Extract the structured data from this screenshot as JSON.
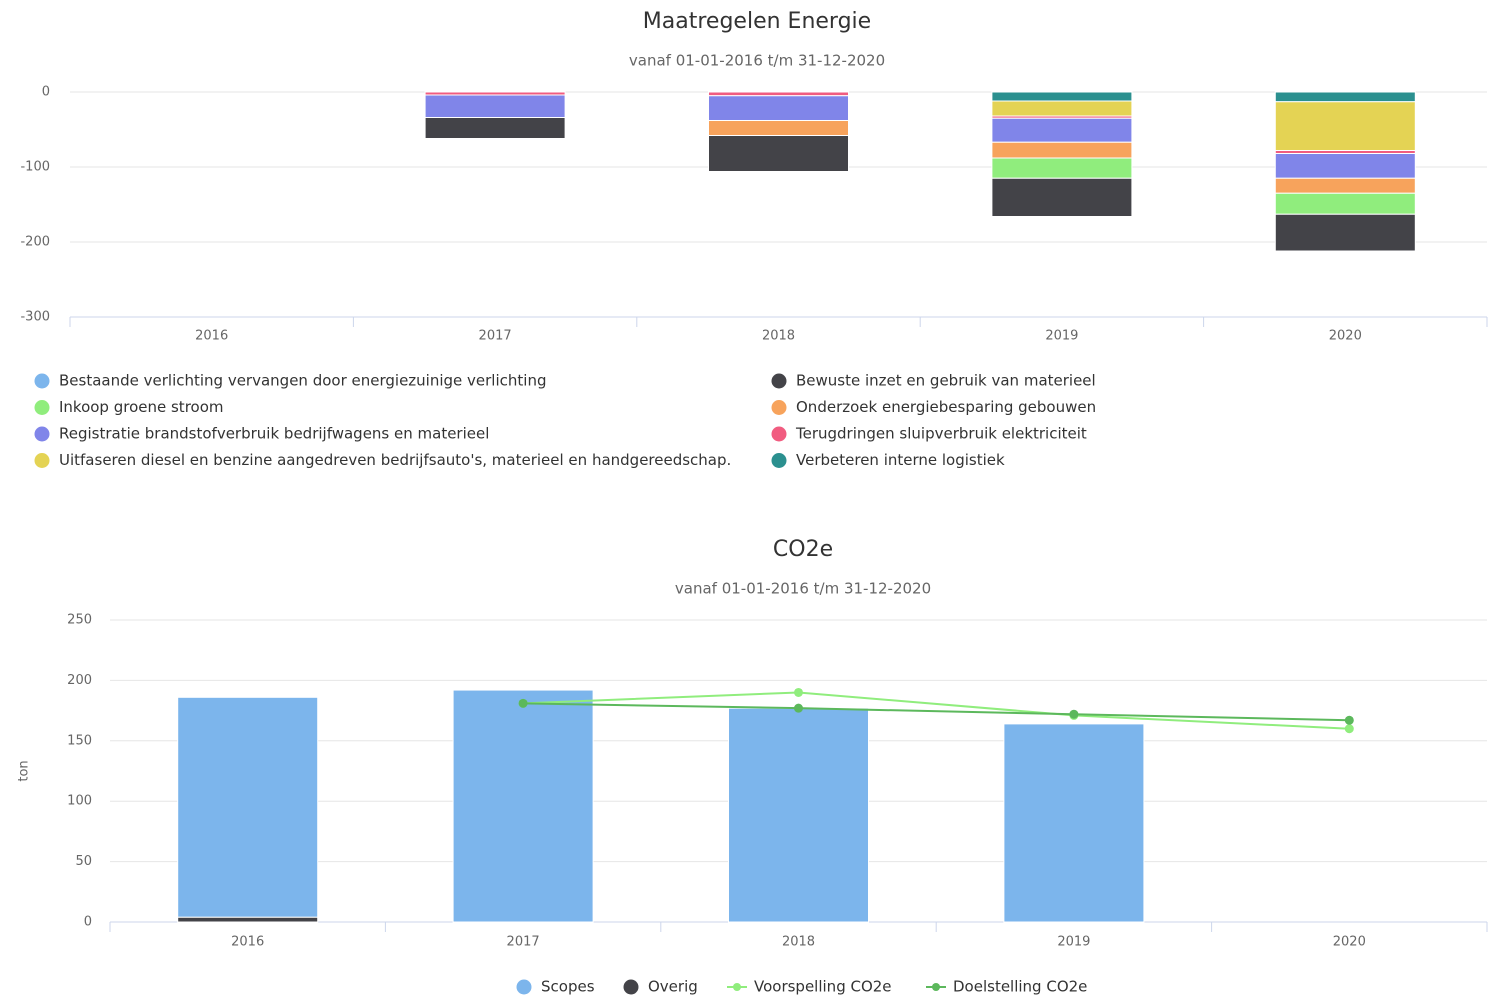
{
  "chart_data": [
    {
      "type": "bar",
      "stacked": true,
      "title": "Maatregelen Energie",
      "subtitle": "vanaf 01-01-2016 t/m 31-12-2020",
      "categories": [
        "2016",
        "2017",
        "2018",
        "2019",
        "2020"
      ],
      "ylim": [
        -300,
        0
      ],
      "yticks": [
        0,
        -100,
        -200,
        -300
      ],
      "grid": true,
      "series": [
        {
          "name": "Bestaande verlichting vervangen door energiezuinige verlichting",
          "color": "#7cb5ec",
          "values": [
            0,
            0,
            0,
            0,
            0
          ]
        },
        {
          "name": "Inkoop groene stroom",
          "color": "#90ed7d",
          "values": [
            0,
            0,
            0,
            -27,
            -28
          ]
        },
        {
          "name": "Registratie brandstofverbruik bedrijfwagens en materieel",
          "color": "#8085e9",
          "values": [
            0,
            -30,
            -33,
            -32,
            -33
          ]
        },
        {
          "name": "Uitfaseren diesel en benzine aangedreven bedrijfsauto's, materieel en handgereedschap.",
          "color": "#e4d354",
          "values": [
            0,
            0,
            0,
            -20,
            -65
          ]
        },
        {
          "name": "Bewuste inzet en gebruik van materieel",
          "color": "#434348",
          "values": [
            0,
            -28,
            -48,
            -51,
            -49
          ]
        },
        {
          "name": "Onderzoek energiebesparing gebouwen",
          "color": "#f7a35c",
          "values": [
            0,
            0,
            -20,
            -21,
            -20
          ]
        },
        {
          "name": "Terugdringen sluipverbruik elektriciteit",
          "color": "#f15c80",
          "values": [
            0,
            -4,
            -5,
            -3,
            -4
          ]
        },
        {
          "name": "Verbeteren interne logistiek",
          "color": "#2b908f",
          "values": [
            0,
            0,
            0,
            -12,
            -13
          ]
        }
      ]
    },
    {
      "type": "bar",
      "stacked": true,
      "title": "CO2e",
      "subtitle": "vanaf 01-01-2016 t/m 31-12-2020",
      "y_label": "ton",
      "categories": [
        "2016",
        "2017",
        "2018",
        "2019",
        "2020"
      ],
      "ylim": [
        0,
        250
      ],
      "yticks": [
        0,
        50,
        100,
        150,
        200,
        250
      ],
      "grid": true,
      "series": [
        {
          "name": "Scopes",
          "color": "#7cb5ec",
          "values": [
            182,
            192,
            177,
            164,
            null
          ]
        },
        {
          "name": "Overig",
          "color": "#434348",
          "values": [
            4,
            0,
            0,
            0,
            null
          ]
        },
        {
          "name": "Voorspelling CO2e",
          "type": "line",
          "color": "#90ed7d",
          "values": [
            null,
            181,
            190,
            171,
            160
          ]
        },
        {
          "name": "Doelstelling CO2e",
          "type": "line",
          "color": "#5cb85c",
          "values": [
            null,
            181,
            177,
            172,
            167
          ]
        }
      ]
    }
  ]
}
